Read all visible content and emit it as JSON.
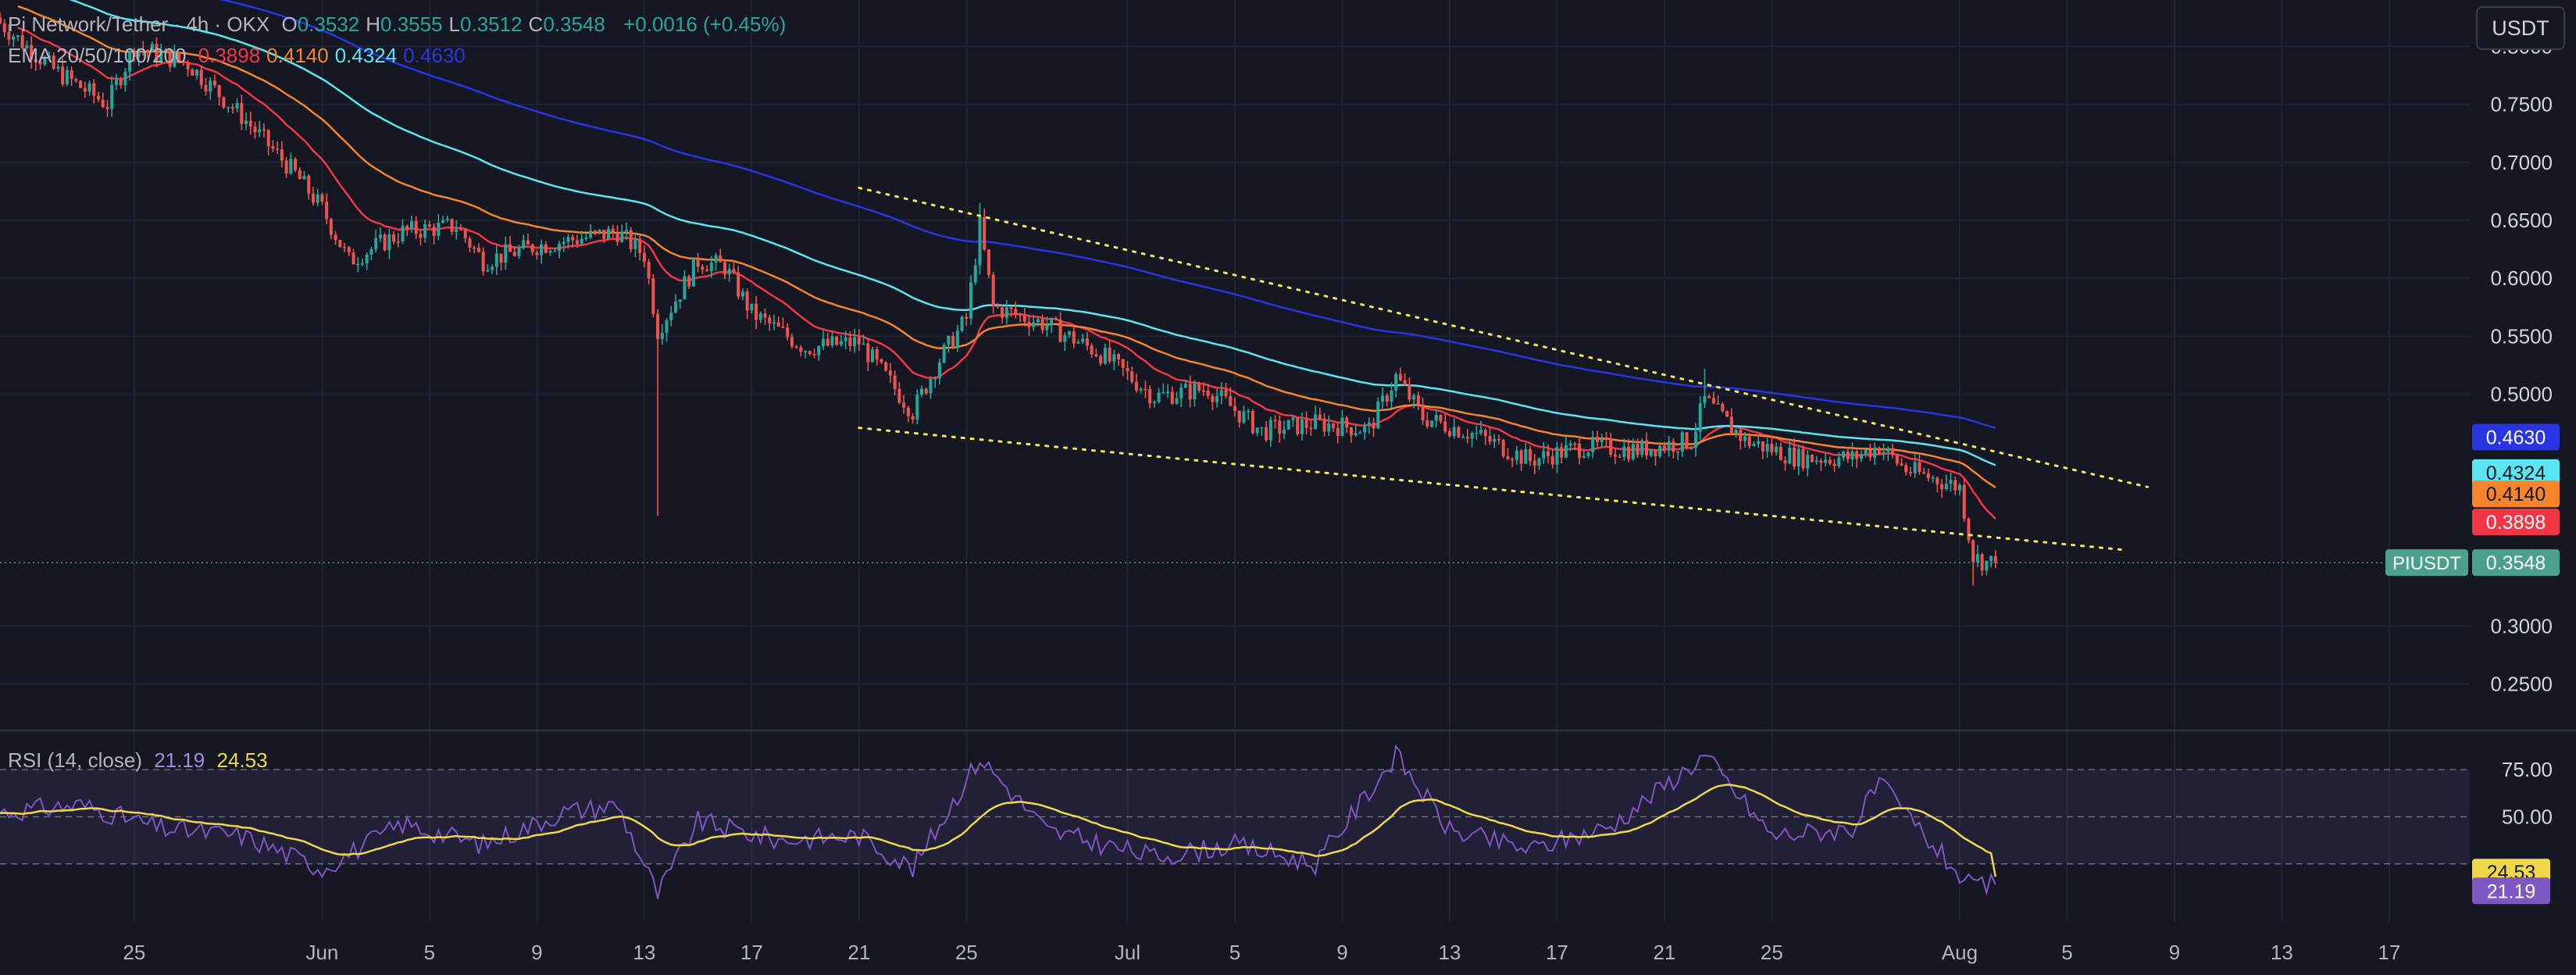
{
  "header": {
    "symbol_title": "Pi Network/Tether · 4h · OKX",
    "ohlc": [
      {
        "key": "O",
        "value": "0.3532"
      },
      {
        "key": "H",
        "value": "0.3555"
      },
      {
        "key": "L",
        "value": "0.3512"
      },
      {
        "key": "C",
        "value": "0.3548"
      }
    ],
    "change": "+0.0016 (+0.45%)",
    "ema_label": "EMA 20/50/100/200",
    "ema_values": [
      {
        "value": "0.3898",
        "color": "#f23645"
      },
      {
        "value": "0.4140",
        "color": "#f5842c"
      },
      {
        "value": "0.4324",
        "color": "#5ae6f0"
      },
      {
        "value": "0.4630",
        "color": "#2835e0"
      }
    ],
    "rsi_label": "RSI (14, close)",
    "rsi_value": "21.19",
    "rsi_ma_value": "24.53"
  },
  "currency_button": "USDT",
  "colors": {
    "background": "#151823",
    "grid": "#212532",
    "up_candle": "#26a69a",
    "down_candle": "#ef5350",
    "ema20": "#f23645",
    "ema50": "#f5842c",
    "ema100": "#5ae6f0",
    "ema200": "#2835e0",
    "trendline": "#f1e85b",
    "rsi_line": "#7e57c2",
    "rsi_ma": "#f0d84a"
  },
  "chart_data": {
    "type": "candlestick",
    "timeframe": "4h",
    "y_ticks": [
      "0.8000",
      "0.7500",
      "0.7000",
      "0.6500",
      "0.6000",
      "0.5500",
      "0.5000",
      "0.3000",
      "0.2500"
    ],
    "y_range": [
      0.21,
      0.84
    ],
    "x_ticks": [
      "25",
      "Jun",
      "5",
      "9",
      "13",
      "17",
      "21",
      "25",
      "Jul",
      "5",
      "9",
      "13",
      "17",
      "21",
      "25",
      "Aug",
      "5",
      "9",
      "13",
      "17"
    ],
    "x_tick_dates": [
      "2025-05-25",
      "2025-06-01",
      "2025-06-05",
      "2025-06-09",
      "2025-06-13",
      "2025-06-17",
      "2025-06-21",
      "2025-06-25",
      "2025-07-01",
      "2025-07-05",
      "2025-07-09",
      "2025-07-13",
      "2025-07-17",
      "2025-07-21",
      "2025-07-25",
      "2025-08-01",
      "2025-08-05",
      "2025-08-09",
      "2025-08-13",
      "2025-08-17"
    ],
    "x_range": [
      "2025-05-20",
      "2025-08-20"
    ],
    "last_bar_date": "2025-08-02",
    "price_anchors": [
      [
        "2025-05-20",
        0.82
      ],
      [
        "2025-05-22",
        0.78
      ],
      [
        "2025-05-24",
        0.75
      ],
      [
        "2025-05-25",
        0.8
      ],
      [
        "2025-05-27",
        0.785
      ],
      [
        "2025-05-29",
        0.74
      ],
      [
        "2025-05-31",
        0.69
      ],
      [
        "2025-06-01",
        0.66
      ],
      [
        "2025-06-02",
        0.615
      ],
      [
        "2025-06-04",
        0.64
      ],
      [
        "2025-06-06",
        0.645
      ],
      [
        "2025-06-07",
        0.615
      ],
      [
        "2025-06-09",
        0.628
      ],
      [
        "2025-06-12",
        0.64
      ],
      [
        "2025-06-13",
        0.62
      ],
      [
        "2025-06-13.5",
        0.555
      ],
      [
        "2025-06-15",
        0.615
      ],
      [
        "2025-06-16",
        0.61
      ],
      [
        "2025-06-17",
        0.57
      ],
      [
        "2025-06-19",
        0.54
      ],
      [
        "2025-06-21",
        0.545
      ],
      [
        "2025-06-23",
        0.485
      ],
      [
        "2025-06-24",
        0.53
      ],
      [
        "2025-06-25",
        0.565
      ],
      [
        "2025-06-25.5",
        0.645
      ],
      [
        "2025-06-26",
        0.575
      ],
      [
        "2025-06-28",
        0.56
      ],
      [
        "2025-06-30",
        0.535
      ],
      [
        "2025-07-02",
        0.498
      ],
      [
        "2025-07-04",
        0.505
      ],
      [
        "2025-07-06",
        0.468
      ],
      [
        "2025-07-08",
        0.475
      ],
      [
        "2025-07-10",
        0.47
      ],
      [
        "2025-07-11",
        0.515
      ],
      [
        "2025-07-12",
        0.48
      ],
      [
        "2025-07-14",
        0.465
      ],
      [
        "2025-07-16",
        0.443
      ],
      [
        "2025-07-18",
        0.455
      ],
      [
        "2025-07-20",
        0.452
      ],
      [
        "2025-07-22",
        0.46
      ],
      [
        "2025-07-22.5",
        0.495
      ],
      [
        "2025-07-24",
        0.46
      ],
      [
        "2025-07-26",
        0.445
      ],
      [
        "2025-07-28",
        0.445
      ],
      [
        "2025-07-29",
        0.455
      ],
      [
        "2025-07-30",
        0.435
      ],
      [
        "2025-08-01",
        0.42
      ],
      [
        "2025-08-01.5",
        0.36
      ],
      [
        "2025-08-02",
        0.3548
      ]
    ],
    "spikes": [
      {
        "date": "2025-06-13.5",
        "low": 0.395
      },
      {
        "date": "2025-06-25.5",
        "high": 0.665
      },
      {
        "date": "2025-07-22.5",
        "high": 0.522
      },
      {
        "date": "2025-08-01.5",
        "low": 0.335
      }
    ],
    "ema_series": [
      {
        "name": "EMA 20",
        "last": 0.3898,
        "period": 20
      },
      {
        "name": "EMA 50",
        "last": 0.414,
        "period": 50
      },
      {
        "name": "EMA 100",
        "last": 0.4324,
        "period": 100
      },
      {
        "name": "EMA 200",
        "last": 0.463,
        "period": 200
      }
    ],
    "trendlines": [
      {
        "from": [
          "2025-06-21",
          0.678
        ],
        "to": [
          "2025-08-08",
          0.42
        ]
      },
      {
        "from": [
          "2025-06-21",
          0.471
        ],
        "to": [
          "2025-08-07",
          0.366
        ]
      }
    ],
    "price_labels": [
      {
        "text": "0.4630",
        "value": 0.463,
        "bg": "#2835e0",
        "fg": "#ffffff"
      },
      {
        "text": "0.4324",
        "value": 0.4324,
        "bg": "#5ae6f0",
        "fg": "#151823"
      },
      {
        "text": "0.4140",
        "value": 0.414,
        "bg": "#f5842c",
        "fg": "#151823"
      },
      {
        "text": "0.3898",
        "value": 0.3898,
        "bg": "#f23645",
        "fg": "#ffffff"
      },
      {
        "text": "0.3548",
        "value": 0.3548,
        "bg": "#4aa08a",
        "fg": "#ffffff",
        "tag": "PIUSDT"
      }
    ],
    "rsi": {
      "range": [
        10,
        82
      ],
      "levels": [
        30,
        50,
        70
      ],
      "level_labels": [
        "75.00",
        "50.00"
      ],
      "anchors": [
        [
          "2025-05-20",
          52
        ],
        [
          "2025-05-23",
          55
        ],
        [
          "2025-05-26",
          45
        ],
        [
          "2025-05-29",
          42
        ],
        [
          "2025-06-01",
          28
        ],
        [
          "2025-06-04",
          47
        ],
        [
          "2025-06-07",
          38
        ],
        [
          "2025-06-10",
          52
        ],
        [
          "2025-06-12",
          55
        ],
        [
          "2025-06-13.5",
          17
        ],
        [
          "2025-06-15",
          48
        ],
        [
          "2025-06-18",
          40
        ],
        [
          "2025-06-21",
          42
        ],
        [
          "2025-06-23",
          28
        ],
        [
          "2025-06-25.5",
          75
        ],
        [
          "2025-06-28",
          44
        ],
        [
          "2025-07-02",
          33
        ],
        [
          "2025-07-05",
          38
        ],
        [
          "2025-07-08",
          30
        ],
        [
          "2025-07-11",
          76
        ],
        [
          "2025-07-13",
          44
        ],
        [
          "2025-07-16",
          36
        ],
        [
          "2025-07-19",
          46
        ],
        [
          "2025-07-22.5",
          76
        ],
        [
          "2025-07-25",
          42
        ],
        [
          "2025-07-28",
          45
        ],
        [
          "2025-07-29",
          64
        ],
        [
          "2025-07-31",
          38
        ],
        [
          "2025-08-01.5",
          19
        ],
        [
          "2025-08-02",
          21.19
        ]
      ],
      "last_rsi": 21.19,
      "last_ma": 24.53,
      "labels": [
        {
          "text": "24.53",
          "value": 24.53,
          "bg": "#f0d84a",
          "fg": "#151823"
        },
        {
          "text": "21.19",
          "value": 21.19,
          "bg": "#7e57c2",
          "fg": "#ffffff"
        }
      ]
    }
  }
}
